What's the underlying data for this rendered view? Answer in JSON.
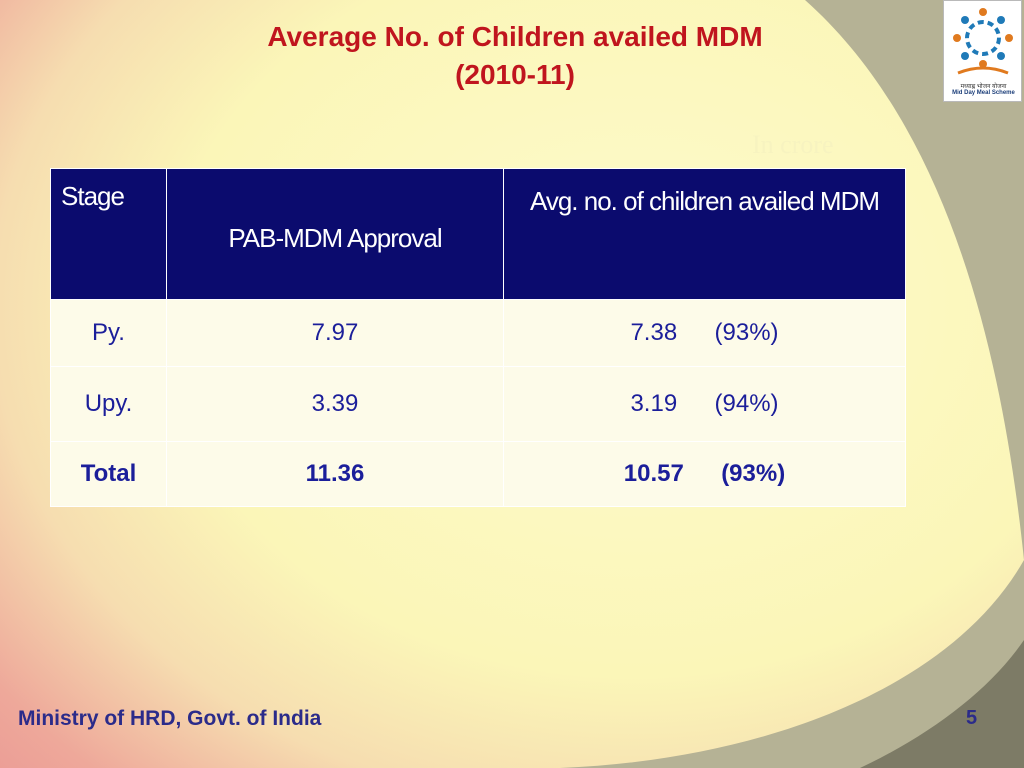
{
  "slide": {
    "title_line1": "Average No. of Children availed MDM",
    "title_line2": "(2010-11)",
    "unit_note": "In crore",
    "footer": "Ministry of HRD, Govt. of India",
    "page_number": "5"
  },
  "logo": {
    "text_hindi": "मध्याह्न भोजन योजना",
    "text_english": "Mid Day Meal Scheme"
  },
  "table": {
    "headers": [
      "Stage",
      "PAB-MDM Approval",
      "Avg. no. of children availed MDM"
    ],
    "rows": [
      {
        "stage": "Py.",
        "approval": "7.97",
        "availed": "7.38",
        "percent": "(93%)"
      },
      {
        "stage": "Upy.",
        "approval": "3.39",
        "availed": "3.19",
        "percent": "(94%)"
      },
      {
        "stage": "Total",
        "approval": "11.36",
        "availed": "10.57",
        "percent": "(93%)"
      }
    ]
  },
  "colors": {
    "title": "#c0151e",
    "header_bg": "#0b0b6e",
    "cell_text": "#1b1e9a",
    "footer_text": "#2b2b8a"
  }
}
